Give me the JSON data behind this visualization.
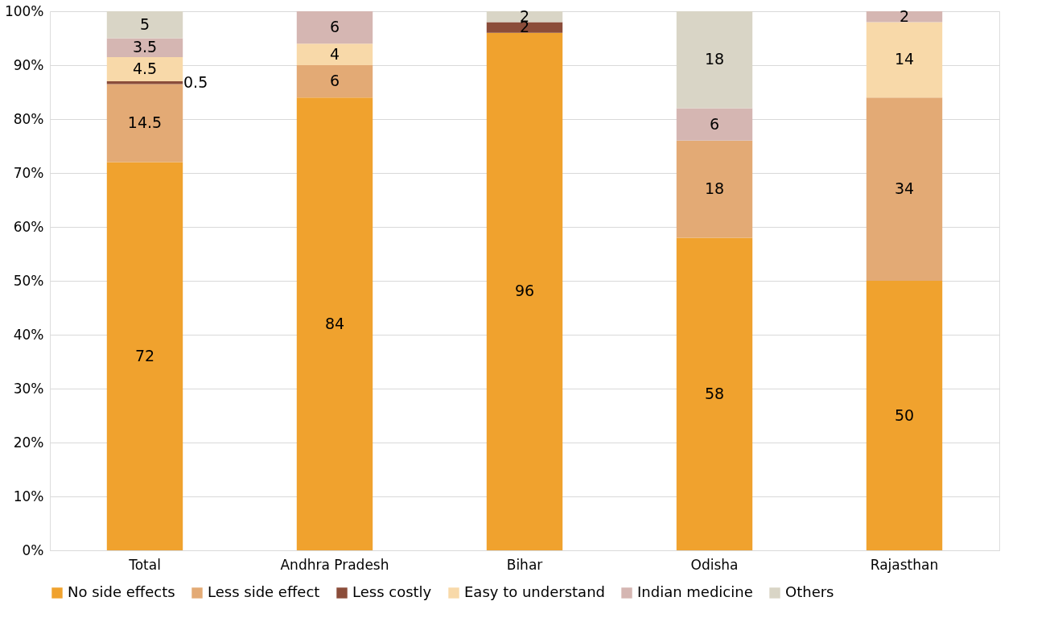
{
  "chart_data": {
    "type": "bar",
    "stacked": true,
    "categories": [
      "Total",
      "Andhra Pradesh",
      "Bihar",
      "Odisha",
      "Rajasthan"
    ],
    "series": [
      {
        "name": "No side effects",
        "color": "#f0a22e",
        "values": [
          72,
          84,
          96,
          58,
          50
        ]
      },
      {
        "name": "Less side effect",
        "color": "#e3aa75",
        "values": [
          14.5,
          6,
          null,
          18,
          34
        ]
      },
      {
        "name": "Less costly",
        "color": "#8b4d3a",
        "values": [
          0.5,
          null,
          2,
          null,
          null
        ]
      },
      {
        "name": "Easy to understand",
        "color": "#f8d9a9",
        "values": [
          4.5,
          4,
          null,
          null,
          14
        ]
      },
      {
        "name": "Indian medicine",
        "color": "#d5b6b2",
        "values": [
          3.5,
          6,
          null,
          6,
          2
        ]
      },
      {
        "name": "Others",
        "color": "#d9d5c6",
        "values": [
          5,
          null,
          2,
          18,
          null
        ]
      }
    ],
    "ylim": [
      0,
      100
    ],
    "yticks": [
      {
        "value": 0,
        "label": "0%"
      },
      {
        "value": 10,
        "label": "10%"
      },
      {
        "value": 20,
        "label": "20%"
      },
      {
        "value": 30,
        "label": "30%"
      },
      {
        "value": 40,
        "label": "40%"
      },
      {
        "value": 50,
        "label": "50%"
      },
      {
        "value": 60,
        "label": "60%"
      },
      {
        "value": 70,
        "label": "70%"
      },
      {
        "value": 80,
        "label": "80%"
      },
      {
        "value": 90,
        "label": "90%"
      },
      {
        "value": 100,
        "label": "100%"
      }
    ],
    "grid": "y",
    "legend": "bottom",
    "data_labels": true
  }
}
